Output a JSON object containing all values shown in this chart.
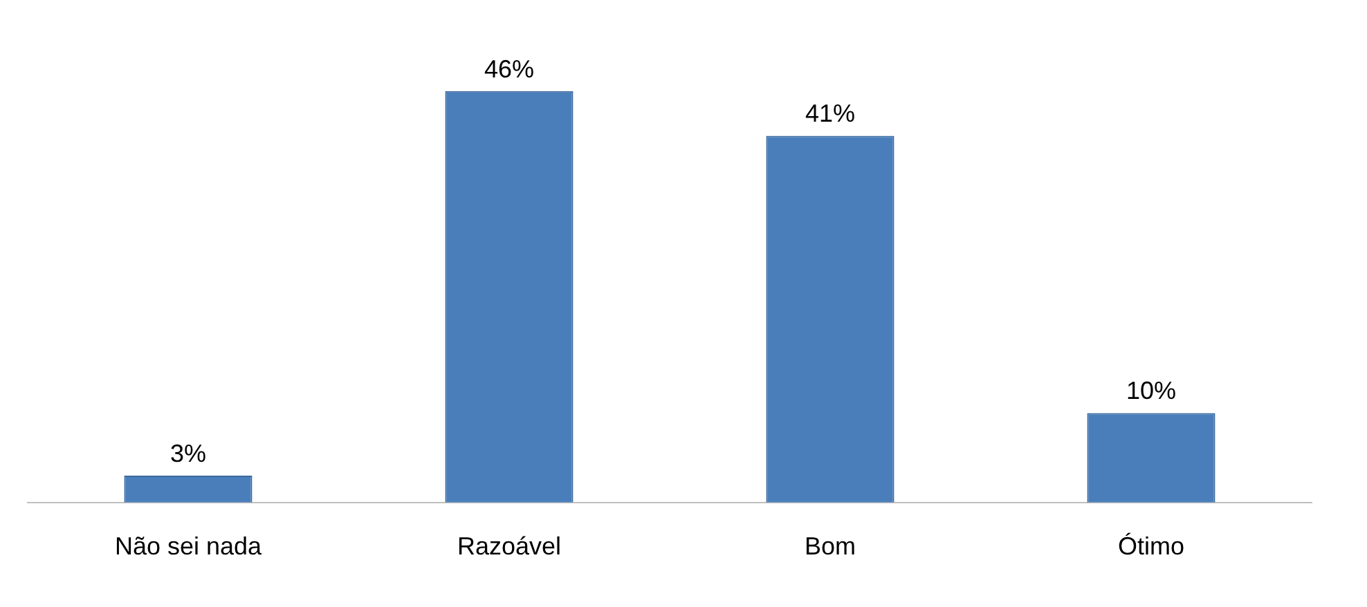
{
  "chart_data": {
    "type": "bar",
    "categories": [
      "Não sei nada",
      "Razoável",
      "Bom",
      "Ótimo"
    ],
    "values": [
      3,
      46,
      41,
      10
    ],
    "color": "#4a7ebb",
    "value_labels": [
      "3%",
      "46%",
      "41%",
      "10%"
    ],
    "grid": false,
    "legend": false
  }
}
